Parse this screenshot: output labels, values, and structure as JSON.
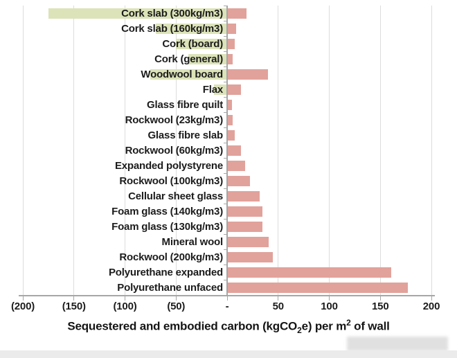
{
  "chart_data": {
    "type": "bar",
    "orientation": "horizontal",
    "title": "",
    "xlabel": "Sequestered and embodied carbon (kgCO2e) per m2 of wall",
    "ylabel": "",
    "xlim": [
      -200,
      200
    ],
    "grid": true,
    "legend": "none",
    "negative_label_style": "parentheses",
    "x_ticks": [
      {
        "label": "(200)",
        "value": -200
      },
      {
        "label": "(150)",
        "value": -150
      },
      {
        "label": "(100)",
        "value": -100
      },
      {
        "label": "(50)",
        "value": -50
      },
      {
        "label": "-",
        "value": 0
      },
      {
        "label": "50",
        "value": 50
      },
      {
        "label": "100",
        "value": 100
      },
      {
        "label": "150",
        "value": 150
      },
      {
        "label": "200",
        "value": 200
      }
    ],
    "series": [
      {
        "name": "sequestered-carbon",
        "color": "#dce3b8"
      },
      {
        "name": "embodied-carbon",
        "color": "#e1a29b"
      }
    ],
    "rows": [
      {
        "label": "Cork slab (300kg/m3)",
        "sequestered": -175,
        "embodied": 18
      },
      {
        "label": "Cork slab (160kg/m3)",
        "sequestered": -70,
        "embodied": 8
      },
      {
        "label": "Cork (board)",
        "sequestered": -50,
        "embodied": 7
      },
      {
        "label": "Cork (general)",
        "sequestered": -38,
        "embodied": 5
      },
      {
        "label": "Woodwool board",
        "sequestered": -75,
        "embodied": 39
      },
      {
        "label": "Flax",
        "sequestered": -13,
        "embodied": 13
      },
      {
        "label": "Glass fibre quilt",
        "sequestered": 0,
        "embodied": 4
      },
      {
        "label": "Rockwool (23kg/m3)",
        "sequestered": 0,
        "embodied": 5
      },
      {
        "label": "Glass fibre slab",
        "sequestered": 0,
        "embodied": 7
      },
      {
        "label": "Rockwool (60kg/m3)",
        "sequestered": 0,
        "embodied": 13
      },
      {
        "label": "Expanded polystyrene",
        "sequestered": 0,
        "embodied": 17
      },
      {
        "label": "Rockwool (100kg/m3)",
        "sequestered": 0,
        "embodied": 22
      },
      {
        "label": "Cellular sheet glass",
        "sequestered": 0,
        "embodied": 31
      },
      {
        "label": "Foam glass (140kg/m3)",
        "sequestered": 0,
        "embodied": 34
      },
      {
        "label": "Foam glass (130kg/m3)",
        "sequestered": 0,
        "embodied": 34
      },
      {
        "label": "Mineral wool",
        "sequestered": 0,
        "embodied": 40
      },
      {
        "label": "Rockwool (200kg/m3)",
        "sequestered": 0,
        "embodied": 44
      },
      {
        "label": "Polyurethane expanded",
        "sequestered": 0,
        "embodied": 160
      },
      {
        "label": "Polyurethane unfaced",
        "sequestered": 0,
        "embodied": 176
      }
    ],
    "colors": {
      "grid": "#dcdcdc",
      "axis": "#a6a6a6",
      "text": "#1c1c1c"
    }
  },
  "axis_title_parts": {
    "prefix": "Sequestered and embodied carbon (kgCO",
    "sub": "2",
    "mid": "e) per m",
    "sup": "2",
    "suffix": " of wall"
  }
}
